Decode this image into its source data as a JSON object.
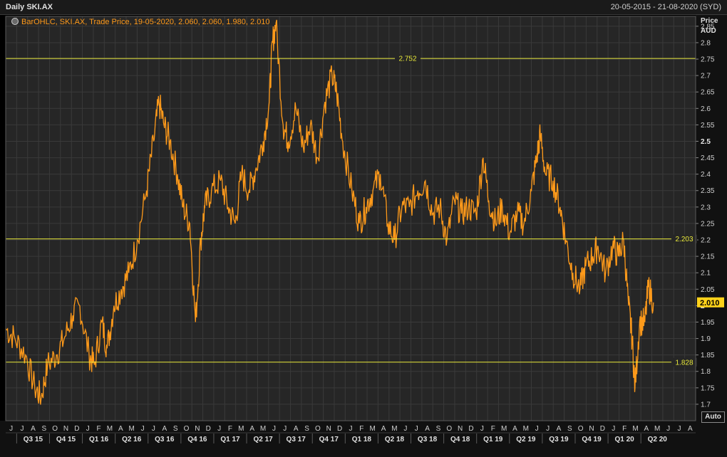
{
  "window": {
    "title": "Daily SKI.AX",
    "date_range": "20-05-2015 - 21-08-2020 (SYD)"
  },
  "legend": {
    "text": "BarOHLC, SKI.AX, Trade Price, 19-05-2020, 2.060, 2.060, 1.980, 2.010"
  },
  "axis": {
    "y_title_1": "Price",
    "y_title_2": "AUD",
    "auto_button": "Auto"
  },
  "colors": {
    "background": "#262626",
    "grid": "#3a3a3a",
    "price_line": "#ff9a1a",
    "hline": "#e8e83a",
    "last_price_bg": "#ffd21a"
  },
  "chart_data": {
    "type": "line",
    "series": [
      {
        "name": "SKI.AX",
        "x": [
          "2015-05-20",
          "2015-06-15",
          "2015-07-15",
          "2015-08-10",
          "2015-08-28",
          "2015-09-15",
          "2015-10-10",
          "2015-11-01",
          "2015-11-25",
          "2015-12-15",
          "2016-01-10",
          "2016-01-25",
          "2016-02-15",
          "2016-03-01",
          "2016-03-20",
          "2016-04-10",
          "2016-05-01",
          "2016-05-25",
          "2016-06-20",
          "2016-07-10",
          "2016-07-25",
          "2016-08-08",
          "2016-08-25",
          "2016-09-15",
          "2016-10-01",
          "2016-10-20",
          "2016-11-05",
          "2016-11-20",
          "2016-12-01",
          "2016-12-20",
          "2017-01-15",
          "2017-02-05",
          "2017-02-25",
          "2017-03-15",
          "2017-04-05",
          "2017-04-25",
          "2017-05-15",
          "2017-06-01",
          "2017-06-10",
          "2017-06-20",
          "2017-07-10",
          "2017-07-25",
          "2017-08-15",
          "2017-09-05",
          "2017-09-25",
          "2017-10-15",
          "2017-11-05",
          "2017-11-25",
          "2017-12-08",
          "2017-12-25",
          "2018-01-20",
          "2018-02-10",
          "2018-03-01",
          "2018-03-20",
          "2018-04-10",
          "2018-05-01",
          "2018-05-20",
          "2018-06-10",
          "2018-07-01",
          "2018-07-25",
          "2018-08-15",
          "2018-09-05",
          "2018-09-25",
          "2018-10-15",
          "2018-11-05",
          "2018-11-25",
          "2018-12-15",
          "2019-01-05",
          "2019-01-25",
          "2019-02-10",
          "2019-03-01",
          "2019-03-20",
          "2019-04-10",
          "2019-05-01",
          "2019-05-20",
          "2019-06-10",
          "2019-06-25",
          "2019-07-05",
          "2019-07-20",
          "2019-08-10",
          "2019-08-30",
          "2019-09-15",
          "2019-10-05",
          "2019-10-25",
          "2019-11-10",
          "2019-11-30",
          "2019-12-15",
          "2020-01-05",
          "2020-01-25",
          "2020-02-10",
          "2020-02-25",
          "2020-03-10",
          "2020-03-20",
          "2020-03-28",
          "2020-04-10",
          "2020-04-25",
          "2020-05-05",
          "2020-05-19"
        ],
        "values": [
          1.93,
          1.9,
          1.85,
          1.75,
          1.72,
          1.82,
          1.85,
          1.9,
          1.97,
          2.0,
          1.85,
          1.82,
          1.95,
          1.87,
          2.0,
          2.05,
          2.1,
          2.2,
          2.35,
          2.5,
          2.62,
          2.55,
          2.5,
          2.4,
          2.3,
          2.25,
          1.95,
          2.2,
          2.3,
          2.35,
          2.38,
          2.3,
          2.25,
          2.4,
          2.35,
          2.42,
          2.5,
          2.62,
          2.8,
          2.86,
          2.55,
          2.5,
          2.6,
          2.48,
          2.55,
          2.45,
          2.62,
          2.7,
          2.65,
          2.5,
          2.35,
          2.25,
          2.3,
          2.35,
          2.4,
          2.25,
          2.2,
          2.3,
          2.3,
          2.35,
          2.38,
          2.28,
          2.3,
          2.2,
          2.32,
          2.28,
          2.3,
          2.28,
          2.45,
          2.32,
          2.25,
          2.3,
          2.22,
          2.28,
          2.25,
          2.35,
          2.45,
          2.52,
          2.4,
          2.38,
          2.3,
          2.2,
          2.1,
          2.05,
          2.12,
          2.15,
          2.18,
          2.1,
          2.18,
          2.15,
          2.2,
          2.0,
          1.9,
          1.75,
          1.95,
          1.95,
          2.06,
          2.01
        ]
      }
    ],
    "ylim": [
      1.65,
      2.88
    ],
    "yticks": [
      "2.85",
      "2.8",
      "2.75",
      "2.7",
      "2.65",
      "2.6",
      "2.55",
      "2.5",
      "2.45",
      "2.4",
      "2.35",
      "2.3",
      "2.25",
      "2.2",
      "2.15",
      "2.1",
      "2.05",
      "2",
      "1.95",
      "1.9",
      "1.85",
      "1.8",
      "1.75",
      "1.7"
    ],
    "ytick_values": [
      2.85,
      2.8,
      2.75,
      2.7,
      2.65,
      2.6,
      2.55,
      2.5,
      2.45,
      2.4,
      2.35,
      2.3,
      2.25,
      2.2,
      2.15,
      2.1,
      2.05,
      2.0,
      1.95,
      1.9,
      1.85,
      1.8,
      1.75,
      1.7
    ],
    "month_labels": [
      "J",
      "J",
      "A",
      "S",
      "O",
      "N",
      "D",
      "J",
      "F",
      "M",
      "A",
      "M",
      "J",
      "J",
      "A",
      "S",
      "O",
      "N",
      "D",
      "J",
      "F",
      "M",
      "A",
      "M",
      "J",
      "J",
      "A",
      "S",
      "O",
      "N",
      "D",
      "J",
      "F",
      "M",
      "A",
      "M",
      "J",
      "J",
      "A",
      "S",
      "O",
      "N",
      "D",
      "J",
      "F",
      "M",
      "A",
      "M",
      "J",
      "J",
      "A",
      "S",
      "O",
      "N",
      "D",
      "J",
      "F",
      "M",
      "A",
      "M",
      "J",
      "J",
      "A"
    ],
    "quarter_labels": [
      "Q3 15",
      "Q4 15",
      "Q1 16",
      "Q2 16",
      "Q3 16",
      "Q4 16",
      "Q1 17",
      "Q2 17",
      "Q3 17",
      "Q4 17",
      "Q1 18",
      "Q2 18",
      "Q3 18",
      "Q4 18",
      "Q1 19",
      "Q2 19",
      "Q3 19",
      "Q4 19",
      "Q1 20",
      "Q2 20"
    ],
    "horizontal_lines": [
      {
        "value": 2.752,
        "label": "2.752"
      },
      {
        "value": 2.203,
        "label": "2.203"
      },
      {
        "value": 1.828,
        "label": "1.828"
      }
    ],
    "last_price": {
      "value": 2.01,
      "label": "2.010"
    },
    "grid": true
  }
}
